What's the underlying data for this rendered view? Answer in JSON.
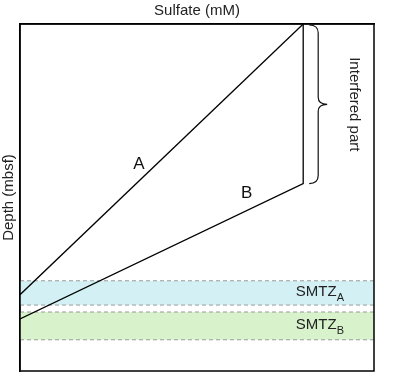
{
  "chart_data": {
    "type": "line",
    "x_label": "Sulfate (mM)",
    "y_label": "Depth (mbsf)",
    "xlim": [
      0,
      100
    ],
    "ylim": [
      0,
      100
    ],
    "tick_labels": false,
    "grid": false,
    "series": [
      {
        "name": "A",
        "color": "#000000",
        "x": [
          80,
          0
        ],
        "values": [
          0,
          78
        ]
      },
      {
        "name": "B",
        "color": "#000000",
        "x": [
          80,
          80,
          0
        ],
        "values": [
          0,
          46,
          85
        ]
      }
    ],
    "bands": [
      {
        "label": "SMTZ",
        "subscript": "A",
        "ylim": [
          74,
          81
        ],
        "color": "#d3f1f5"
      },
      {
        "label": "SMTZ",
        "subscript": "B",
        "ylim": [
          83,
          91
        ],
        "color": "#d8f2cb"
      }
    ],
    "brace": {
      "label": "Interfered part",
      "ylim": [
        0,
        46
      ]
    }
  }
}
